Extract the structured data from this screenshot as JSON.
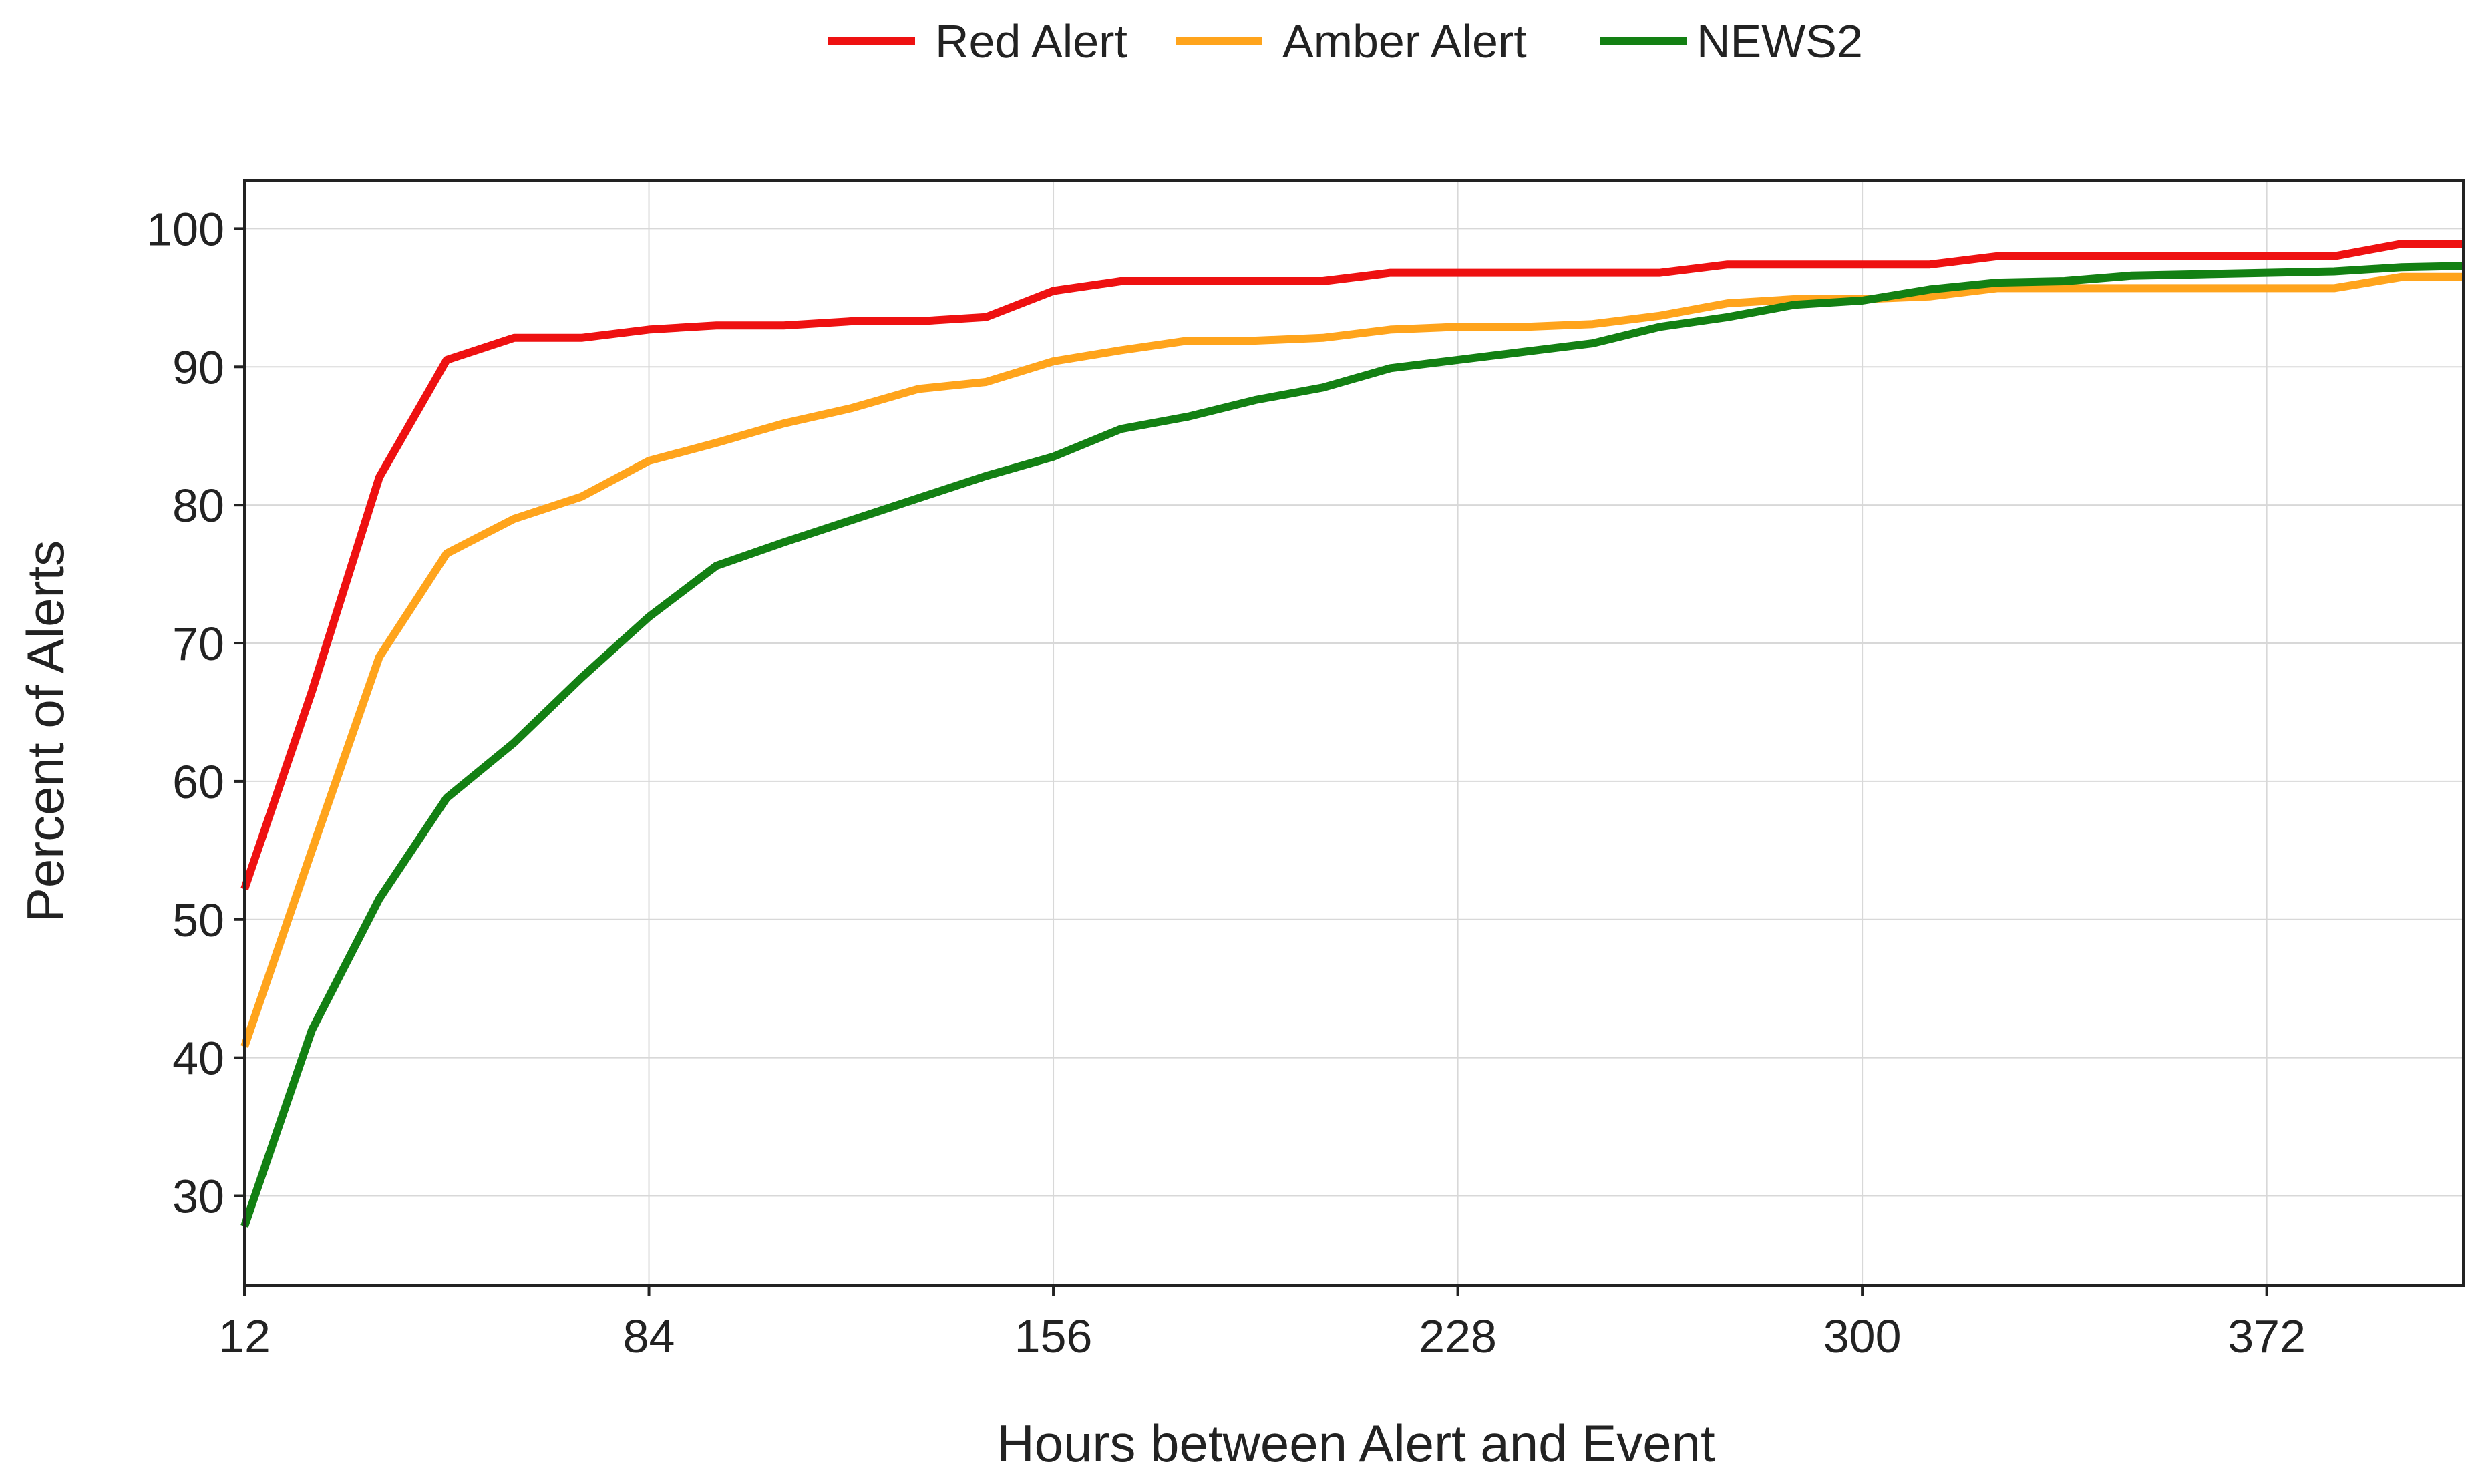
{
  "chart_data": {
    "type": "line",
    "xlabel": "Hours between Alert and Event",
    "ylabel": "Percent of Alerts",
    "xlim": [
      12,
      407
    ],
    "ylim": [
      23.5,
      103.5
    ],
    "xticks": [
      12,
      84,
      156,
      228,
      300,
      372
    ],
    "yticks": [
      30,
      40,
      50,
      60,
      70,
      80,
      90,
      100
    ],
    "grid": true,
    "legend_position": "top-center",
    "x": [
      12,
      24,
      36,
      48,
      60,
      72,
      84,
      96,
      108,
      120,
      132,
      144,
      156,
      168,
      180,
      192,
      204,
      216,
      228,
      240,
      252,
      264,
      276,
      288,
      300,
      312,
      324,
      336,
      348,
      360,
      372,
      384,
      396,
      407
    ],
    "series": [
      {
        "name": "Red Alert",
        "color": "#ee1111",
        "values": [
          52.2,
          66.5,
          82.0,
          90.5,
          92.1,
          92.1,
          92.7,
          93.0,
          93.0,
          93.3,
          93.3,
          93.6,
          95.5,
          96.2,
          96.2,
          96.2,
          96.2,
          96.8,
          96.8,
          96.8,
          96.8,
          96.8,
          97.4,
          97.4,
          97.4,
          97.4,
          98.0,
          98.0,
          98.0,
          98.0,
          98.0,
          98.0,
          98.9,
          98.9
        ]
      },
      {
        "name": "Amber Alert",
        "color": "#ffa41c",
        "values": [
          40.8,
          55.0,
          69.0,
          76.5,
          79.0,
          80.6,
          83.2,
          84.5,
          85.9,
          87.0,
          88.4,
          88.9,
          90.4,
          91.2,
          91.9,
          91.9,
          92.1,
          92.7,
          92.9,
          92.9,
          93.1,
          93.7,
          94.6,
          94.9,
          94.9,
          95.1,
          95.7,
          95.7,
          95.7,
          95.7,
          95.7,
          95.7,
          96.5,
          96.5
        ]
      },
      {
        "name": "NEWS2",
        "color": "#138013",
        "values": [
          27.8,
          42.0,
          51.5,
          58.8,
          62.8,
          67.5,
          71.9,
          75.6,
          77.3,
          78.9,
          80.5,
          82.1,
          83.5,
          85.5,
          86.4,
          87.6,
          88.5,
          89.9,
          90.5,
          91.1,
          91.7,
          92.9,
          93.6,
          94.5,
          94.8,
          95.6,
          96.1,
          96.2,
          96.6,
          96.7,
          96.8,
          96.9,
          97.2,
          97.3
        ]
      }
    ]
  }
}
